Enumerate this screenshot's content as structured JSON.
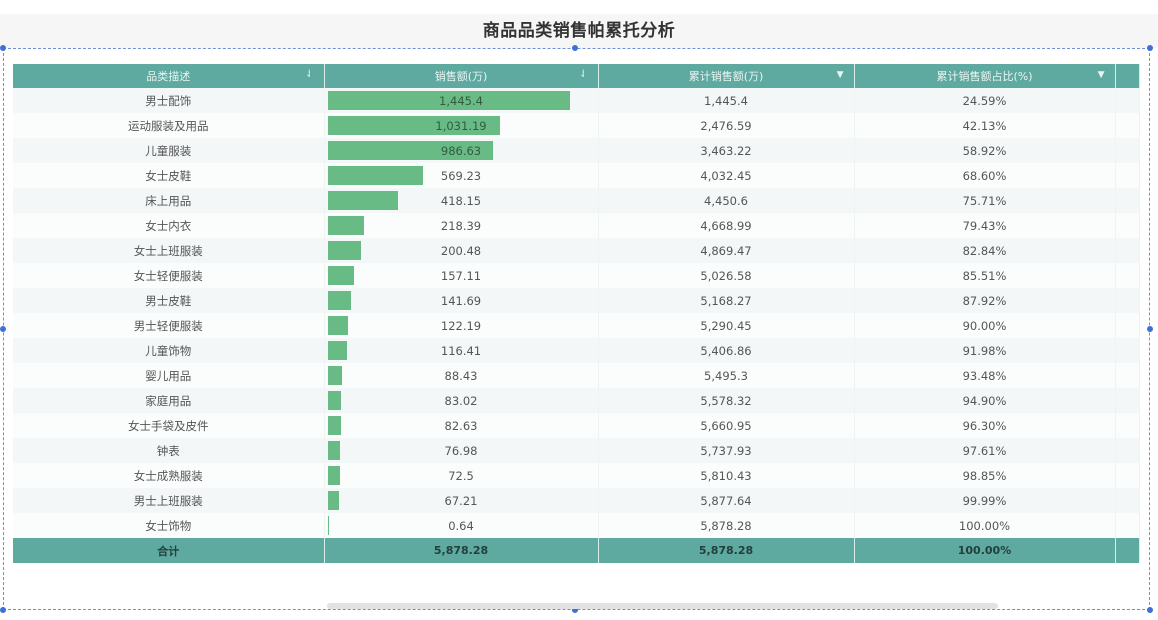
{
  "title": "商品品类销售帕累托分析",
  "table": {
    "columns": [
      {
        "label": "品类描述",
        "icon": "sort-icon"
      },
      {
        "label": "销售额(万)",
        "icon": "sort-icon"
      },
      {
        "label": "累计销售额(万)",
        "icon": "dropdown-icon"
      },
      {
        "label": "累计销售额占比(%)",
        "icon": "dropdown-icon"
      }
    ],
    "rows": [
      {
        "category": "男士配饰",
        "sales": "1,445.4",
        "sales_value": 1445.4,
        "cum_sales": "1,445.4",
        "cum_pct": "24.59%"
      },
      {
        "category": "运动服装及用品",
        "sales": "1,031.19",
        "sales_value": 1031.19,
        "cum_sales": "2,476.59",
        "cum_pct": "42.13%"
      },
      {
        "category": "儿童服装",
        "sales": "986.63",
        "sales_value": 986.63,
        "cum_sales": "3,463.22",
        "cum_pct": "58.92%"
      },
      {
        "category": "女士皮鞋",
        "sales": "569.23",
        "sales_value": 569.23,
        "cum_sales": "4,032.45",
        "cum_pct": "68.60%"
      },
      {
        "category": "床上用品",
        "sales": "418.15",
        "sales_value": 418.15,
        "cum_sales": "4,450.6",
        "cum_pct": "75.71%"
      },
      {
        "category": "女士内衣",
        "sales": "218.39",
        "sales_value": 218.39,
        "cum_sales": "4,668.99",
        "cum_pct": "79.43%"
      },
      {
        "category": "女士上班服装",
        "sales": "200.48",
        "sales_value": 200.48,
        "cum_sales": "4,869.47",
        "cum_pct": "82.84%"
      },
      {
        "category": "女士轻便服装",
        "sales": "157.11",
        "sales_value": 157.11,
        "cum_sales": "5,026.58",
        "cum_pct": "85.51%"
      },
      {
        "category": "男士皮鞋",
        "sales": "141.69",
        "sales_value": 141.69,
        "cum_sales": "5,168.27",
        "cum_pct": "87.92%"
      },
      {
        "category": "男士轻便服装",
        "sales": "122.19",
        "sales_value": 122.19,
        "cum_sales": "5,290.45",
        "cum_pct": "90.00%"
      },
      {
        "category": "儿童饰物",
        "sales": "116.41",
        "sales_value": 116.41,
        "cum_sales": "5,406.86",
        "cum_pct": "91.98%"
      },
      {
        "category": "婴儿用品",
        "sales": "88.43",
        "sales_value": 88.43,
        "cum_sales": "5,495.3",
        "cum_pct": "93.48%"
      },
      {
        "category": "家庭用品",
        "sales": "83.02",
        "sales_value": 83.02,
        "cum_sales": "5,578.32",
        "cum_pct": "94.90%"
      },
      {
        "category": "女士手袋及皮件",
        "sales": "82.63",
        "sales_value": 82.63,
        "cum_sales": "5,660.95",
        "cum_pct": "96.30%"
      },
      {
        "category": "钟表",
        "sales": "76.98",
        "sales_value": 76.98,
        "cum_sales": "5,737.93",
        "cum_pct": "97.61%"
      },
      {
        "category": "女士成熟服装",
        "sales": "72.5",
        "sales_value": 72.5,
        "cum_sales": "5,810.43",
        "cum_pct": "98.85%"
      },
      {
        "category": "男士上班服装",
        "sales": "67.21",
        "sales_value": 67.21,
        "cum_sales": "5,877.64",
        "cum_pct": "99.99%"
      },
      {
        "category": "女士饰物",
        "sales": "0.64",
        "sales_value": 0.64,
        "cum_sales": "5,878.28",
        "cum_pct": "100.00%"
      }
    ],
    "total": {
      "label": "合计",
      "sales": "5,878.28",
      "cum_sales": "5,878.28",
      "cum_pct": "100.00%"
    }
  },
  "colors": {
    "header_bg": "#5ea9a0",
    "bar": "#69bb86",
    "selection_frame": "#3f6fd8"
  },
  "icons": {
    "sort": "⇃",
    "dropdown": "▼"
  }
}
